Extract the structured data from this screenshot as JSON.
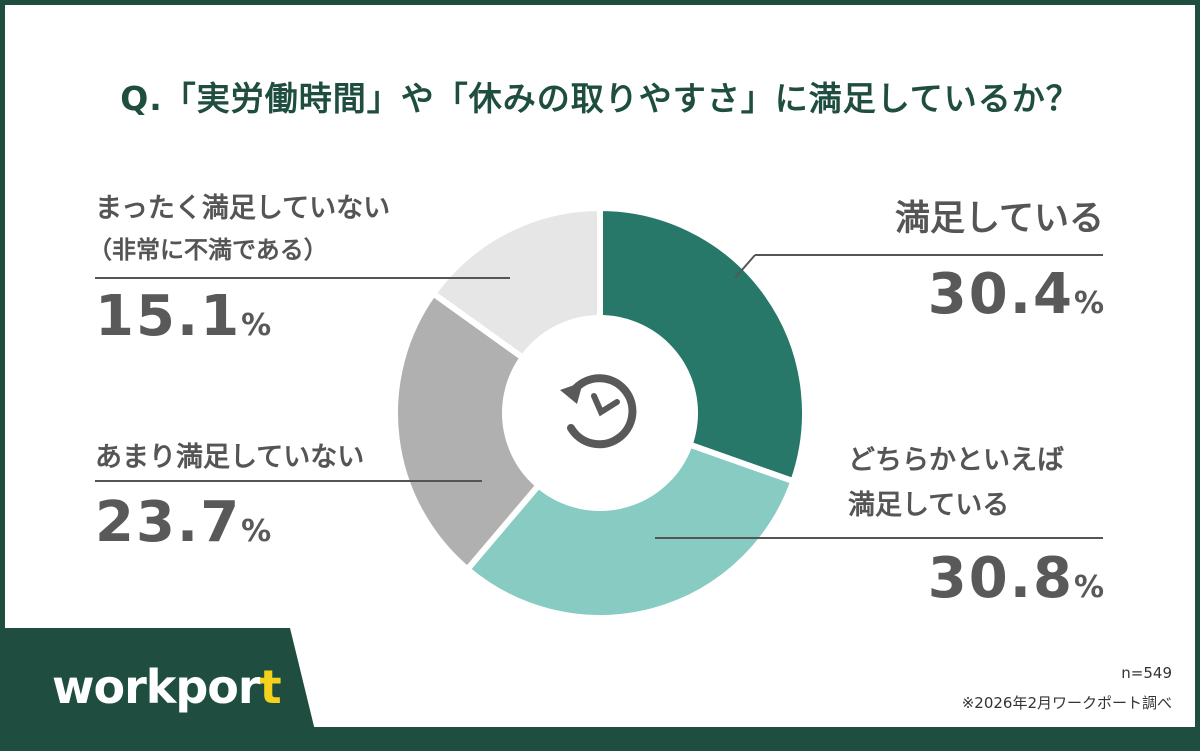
{
  "title": "Q.「実労働時間」や「休みの取りやすさ」に満足しているか？",
  "chart_data": {
    "type": "pie",
    "title": "Q.「実労働時間」や「休みの取りやすさ」に満足しているか？",
    "categories": [
      "満足している",
      "どちらかといえば満足している",
      "あまり満足していない",
      "まったく満足していない（非常に不満である）"
    ],
    "values": [
      30.4,
      30.8,
      23.7,
      15.1
    ],
    "unit": "%",
    "colors": [
      "#277868",
      "#88cbc2",
      "#b0b0b0",
      "#e6e6e6"
    ]
  },
  "labels": {
    "satisfied": {
      "text": "満足している",
      "value": "30.4",
      "unit": "%"
    },
    "somewhat_satisfied": {
      "line1": "どちらかといえば",
      "line2": "満足している",
      "value": "30.8",
      "unit": "%"
    },
    "not_very": {
      "text": "あまり満足していない",
      "value": "23.7",
      "unit": "%"
    },
    "not_at_all": {
      "line1": "まったく満足していない",
      "line2": "（非常に不満である）",
      "value": "15.1",
      "unit": "%"
    }
  },
  "center_icon": "clock-rotate-icon",
  "footer": {
    "logo_main": "workpor",
    "logo_accent": "t",
    "sample": "n=549",
    "source": "※2026年2月ワークポート調べ"
  }
}
